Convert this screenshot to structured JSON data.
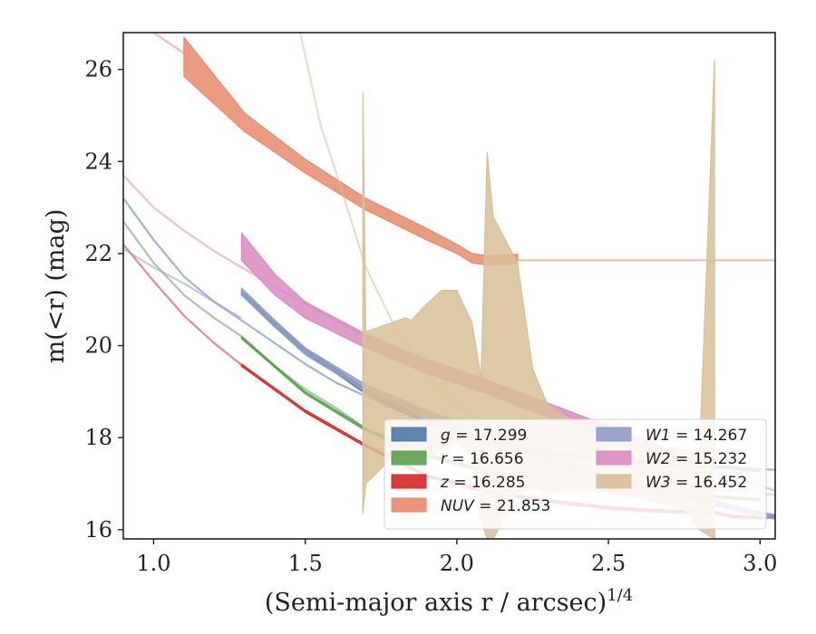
{
  "chart_data": {
    "type": "line",
    "title": "",
    "xlabel": "(Semi-major axis r / arcsec)",
    "xlabel_sup": "1/4",
    "ylabel": "m(<r) (mag)",
    "xlim": [
      0.9,
      3.05
    ],
    "ylim": [
      26.8,
      15.8
    ],
    "y_inverted": true,
    "grid": false,
    "xticks": [
      "1.0",
      "1.5",
      "2.0",
      "2.5",
      "3.0"
    ],
    "yticks": [
      "16",
      "18",
      "20",
      "22",
      "24",
      "26"
    ],
    "legend_position": "lower-right",
    "series": [
      {
        "name": "g = 17.299",
        "label_var": "g",
        "label_val": "17.299",
        "color": "#4c78a8",
        "data_x": [
          1.29,
          1.4,
          1.5,
          1.7,
          1.9,
          2.1,
          2.3,
          2.5,
          2.7,
          2.9,
          3.0
        ],
        "data_lo": [
          21.2,
          20.5,
          19.95,
          19.05,
          18.4,
          17.95,
          17.7,
          17.55,
          17.45,
          17.38,
          17.32
        ],
        "data_hi": [
          21.1,
          20.4,
          19.85,
          18.95,
          18.3,
          17.88,
          17.63,
          17.48,
          17.38,
          17.32,
          17.26
        ],
        "extrap_x": [
          0.9,
          1.0,
          1.1,
          1.2,
          1.29,
          1.4,
          1.5,
          1.6,
          1.7,
          1.8,
          1.9,
          2.0,
          2.1,
          2.2,
          2.3,
          2.4,
          2.5,
          2.6,
          2.7,
          2.8,
          2.9,
          3.0,
          3.05
        ],
        "extrap_y": [
          23.2,
          22.3,
          21.5,
          20.95,
          20.55,
          20.05,
          19.6,
          19.2,
          18.9,
          18.6,
          18.35,
          18.15,
          18.0,
          17.85,
          17.72,
          17.62,
          17.55,
          17.48,
          17.42,
          17.38,
          17.35,
          17.32,
          17.3
        ]
      },
      {
        "name": "r = 16.656",
        "label_var": "r",
        "label_val": "16.656",
        "color": "#59a14f",
        "data_x": [
          1.29,
          1.5,
          1.7,
          1.9,
          2.1,
          2.3,
          2.5,
          2.7,
          2.9,
          3.0
        ],
        "data_lo": [
          20.2,
          19.0,
          18.2,
          17.65,
          17.3,
          17.05,
          16.9,
          16.8,
          16.72,
          16.68
        ],
        "data_hi": [
          20.15,
          18.95,
          18.15,
          17.6,
          17.25,
          17.0,
          16.85,
          16.75,
          16.67,
          16.63
        ],
        "extrap_x": [
          0.9,
          1.0,
          1.1,
          1.2,
          1.29,
          1.4,
          1.5,
          1.6,
          1.7,
          1.8,
          1.9,
          2.0,
          2.2,
          2.4,
          2.6,
          2.8,
          3.0
        ],
        "extrap_y": [
          22.7,
          21.8,
          21.1,
          20.6,
          20.2,
          19.55,
          19.05,
          18.65,
          18.2,
          17.85,
          17.6,
          17.4,
          17.1,
          16.92,
          16.8,
          16.72,
          16.65
        ]
      },
      {
        "name": "z = 16.285",
        "label_var": "z",
        "label_val": "16.285",
        "color": "#d62728",
        "data_x": [
          1.29,
          1.5,
          1.7,
          1.9,
          2.1,
          2.3,
          2.5,
          2.7,
          2.85,
          2.9,
          3.0,
          3.05
        ],
        "data_lo": [
          19.6,
          18.6,
          17.85,
          17.2,
          16.85,
          16.65,
          16.5,
          16.42,
          16.4,
          16.32,
          16.28,
          16.3
        ],
        "data_hi": [
          19.55,
          18.55,
          17.8,
          17.15,
          16.8,
          16.6,
          16.45,
          16.37,
          16.35,
          16.27,
          16.24,
          16.26
        ],
        "extrap_x": [
          0.9,
          1.0,
          1.1,
          1.2,
          1.29
        ],
        "extrap_y": [
          22.2,
          21.4,
          20.65,
          20.05,
          19.58
        ]
      },
      {
        "name": "NUV = 21.853",
        "label_var": "NUV",
        "label_val": "21.853",
        "color": "#e8896a",
        "data_x": [
          1.1,
          1.3,
          1.5,
          1.7,
          1.9,
          2.0,
          2.05,
          2.1,
          2.2
        ],
        "data_lo": [
          26.7,
          25.05,
          24.05,
          23.2,
          22.55,
          22.2,
          22.0,
          21.95,
          21.98
        ],
        "data_hi": [
          25.85,
          24.65,
          23.75,
          22.95,
          22.3,
          22.0,
          21.8,
          21.75,
          21.78
        ],
        "extrap_x": [
          0.9,
          1.0,
          1.1
        ],
        "extrap_y": [
          27.3,
          26.8,
          26.35
        ],
        "flat_x": [
          2.2,
          3.05
        ],
        "flat_y": 21.853
      },
      {
        "name": "W1 = 14.267",
        "label_var": "W1",
        "label_val": "14.267",
        "color": "#8f9ec4",
        "data_x": [
          1.29,
          1.4,
          1.5,
          1.7,
          1.9,
          2.1,
          2.3,
          2.5,
          2.7,
          2.9,
          3.0,
          3.05
        ],
        "data_lo": [
          21.25,
          20.55,
          19.95,
          19.15,
          18.6,
          18.1,
          17.6,
          17.2,
          16.9,
          16.55,
          16.38,
          16.33
        ],
        "data_hi": [
          21.1,
          20.4,
          19.8,
          19.0,
          18.45,
          17.95,
          17.45,
          17.05,
          16.75,
          16.45,
          16.28,
          16.23
        ],
        "extrap_x": [
          0.9,
          1.0,
          1.1,
          1.2,
          1.29
        ],
        "extrap_y": [
          22.1,
          21.7,
          21.35,
          20.95,
          20.6
        ]
      },
      {
        "name": "W2 = 15.232",
        "label_var": "W2",
        "label_val": "15.232",
        "color": "#d989c0",
        "data_x": [
          1.29,
          1.4,
          1.5,
          1.7,
          1.9,
          2.1,
          2.3,
          2.5,
          2.7,
          2.8
        ],
        "data_lo": [
          22.45,
          21.55,
          20.95,
          20.25,
          19.7,
          19.25,
          18.75,
          18.25,
          17.75,
          17.55
        ],
        "data_hi": [
          21.85,
          21.1,
          20.6,
          19.95,
          19.4,
          18.95,
          18.45,
          17.95,
          17.45,
          17.25
        ],
        "extrap_x": [
          0.9,
          1.0,
          1.1,
          1.2,
          1.29,
          1.5,
          1.7,
          1.9,
          2.1,
          2.3,
          2.5,
          2.7,
          2.9,
          3.05
        ],
        "extrap_y": [
          23.7,
          23.0,
          22.5,
          22.05,
          21.7,
          20.9,
          20.2,
          19.65,
          19.15,
          18.65,
          18.15,
          17.65,
          17.15,
          16.85
        ]
      },
      {
        "name": "W3 = 16.452",
        "label_var": "W3",
        "label_val": "16.452",
        "color": "#d8bf98",
        "data_x": [
          1.69,
          1.7,
          1.83,
          1.85,
          1.9,
          1.95,
          2.0,
          2.05,
          2.08,
          2.1,
          2.12,
          2.2,
          2.25,
          2.3,
          2.45,
          2.55,
          2.65,
          2.75,
          2.8,
          2.85
        ],
        "data_lo": [
          25.5,
          20.3,
          20.6,
          20.55,
          20.9,
          21.2,
          21.2,
          20.5,
          19.3,
          24.2,
          22.8,
          21.8,
          19.5,
          18.7,
          18.1,
          18.1,
          17.8,
          17.75,
          17.6,
          26.2
        ],
        "data_hi": [
          16.35,
          17.0,
          17.85,
          17.7,
          17.55,
          17.75,
          17.9,
          17.6,
          16.2,
          15.8,
          15.8,
          16.8,
          16.9,
          16.8,
          16.85,
          16.75,
          16.6,
          16.45,
          16.0,
          15.8
        ],
        "extrap_x": [
          1.48,
          1.55,
          1.6,
          1.7,
          1.8,
          1.9,
          2.0,
          2.1,
          2.2,
          2.4,
          2.6,
          2.8,
          3.0,
          3.05
        ],
        "extrap_y": [
          26.9,
          24.8,
          23.8,
          21.7,
          20.35,
          19.4,
          18.7,
          18.2,
          17.85,
          17.4,
          17.1,
          16.9,
          16.78,
          16.75
        ]
      }
    ]
  }
}
